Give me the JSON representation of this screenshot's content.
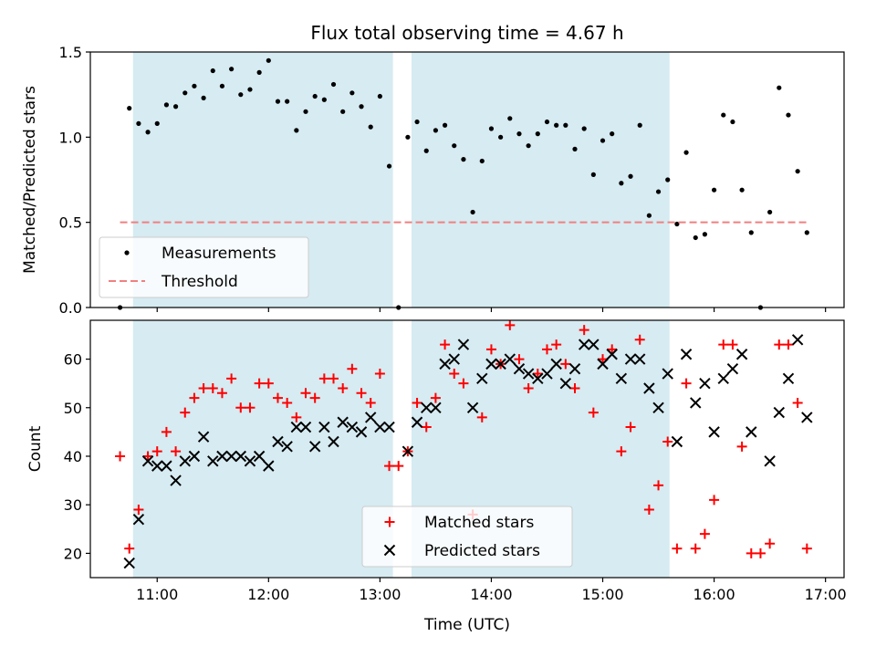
{
  "chart_data": [
    {
      "type": "scatter",
      "title": "Flux total observing time = 4.67 h",
      "xlabel": "",
      "ylabel": "Matched/Predicted stars",
      "ylim": [
        0,
        1.5
      ],
      "yticks": [
        "0.0",
        "0.5",
        "1.0",
        "1.5"
      ],
      "xlim": [
        "10:24",
        "17:10"
      ],
      "shaded_intervals": [
        [
          "10:47",
          "13:07"
        ],
        [
          "13:17",
          "15:36"
        ]
      ],
      "legend_position": "lower-left",
      "series": [
        {
          "name": "Measurements",
          "marker": "dot",
          "color": "#000000",
          "points": [
            [
              "10:40",
              0.0
            ],
            [
              "10:45",
              1.17
            ],
            [
              "10:50",
              1.08
            ],
            [
              "10:55",
              1.03
            ],
            [
              "11:00",
              1.08
            ],
            [
              "11:05",
              1.19
            ],
            [
              "11:10",
              1.18
            ],
            [
              "11:15",
              1.26
            ],
            [
              "11:20",
              1.3
            ],
            [
              "11:25",
              1.23
            ],
            [
              "11:30",
              1.39
            ],
            [
              "11:35",
              1.3
            ],
            [
              "11:40",
              1.4
            ],
            [
              "11:45",
              1.25
            ],
            [
              "11:50",
              1.28
            ],
            [
              "11:55",
              1.38
            ],
            [
              "12:00",
              1.45
            ],
            [
              "12:05",
              1.21
            ],
            [
              "12:10",
              1.21
            ],
            [
              "12:15",
              1.04
            ],
            [
              "12:20",
              1.15
            ],
            [
              "12:25",
              1.24
            ],
            [
              "12:30",
              1.22
            ],
            [
              "12:35",
              1.31
            ],
            [
              "12:40",
              1.15
            ],
            [
              "12:45",
              1.26
            ],
            [
              "12:50",
              1.18
            ],
            [
              "12:55",
              1.06
            ],
            [
              "13:00",
              1.24
            ],
            [
              "13:05",
              0.83
            ],
            [
              "13:10",
              0.0
            ],
            [
              "13:15",
              1.0
            ],
            [
              "13:20",
              1.09
            ],
            [
              "13:25",
              0.92
            ],
            [
              "13:30",
              1.04
            ],
            [
              "13:35",
              1.07
            ],
            [
              "13:40",
              0.95
            ],
            [
              "13:45",
              0.87
            ],
            [
              "13:50",
              0.56
            ],
            [
              "13:55",
              0.86
            ],
            [
              "14:00",
              1.05
            ],
            [
              "14:05",
              1.0
            ],
            [
              "14:10",
              1.11
            ],
            [
              "14:15",
              1.02
            ],
            [
              "14:20",
              0.95
            ],
            [
              "14:25",
              1.02
            ],
            [
              "14:30",
              1.09
            ],
            [
              "14:35",
              1.07
            ],
            [
              "14:40",
              1.07
            ],
            [
              "14:45",
              0.93
            ],
            [
              "14:50",
              1.05
            ],
            [
              "14:55",
              0.78
            ],
            [
              "15:00",
              0.98
            ],
            [
              "15:05",
              1.02
            ],
            [
              "15:10",
              0.73
            ],
            [
              "15:15",
              0.77
            ],
            [
              "15:20",
              1.07
            ],
            [
              "15:25",
              0.54
            ],
            [
              "15:30",
              0.68
            ],
            [
              "15:35",
              0.75
            ],
            [
              "15:40",
              0.49
            ],
            [
              "15:45",
              0.91
            ],
            [
              "15:50",
              0.41
            ],
            [
              "15:55",
              0.43
            ],
            [
              "16:00",
              0.69
            ],
            [
              "16:05",
              1.13
            ],
            [
              "16:10",
              1.09
            ],
            [
              "16:15",
              0.69
            ],
            [
              "16:20",
              0.44
            ],
            [
              "16:25",
              0.0
            ],
            [
              "16:30",
              0.56
            ],
            [
              "16:35",
              1.29
            ],
            [
              "16:40",
              1.13
            ],
            [
              "16:45",
              0.8
            ],
            [
              "16:50",
              0.44
            ]
          ]
        },
        {
          "name": "Threshold",
          "marker": "dashed-line",
          "color": "#f08080",
          "points": [
            [
              "10:40",
              0.5
            ],
            [
              "16:50",
              0.5
            ]
          ]
        }
      ]
    },
    {
      "type": "scatter",
      "title": "",
      "xlabel": "Time (UTC)",
      "ylabel": "Count",
      "ylim": [
        15,
        68
      ],
      "yticks": [
        "20",
        "30",
        "40",
        "50",
        "60"
      ],
      "xticks": [
        "11:00",
        "12:00",
        "13:00",
        "14:00",
        "15:00",
        "16:00",
        "17:00"
      ],
      "xlim": [
        "10:24",
        "17:10"
      ],
      "shaded_intervals": [
        [
          "10:47",
          "13:07"
        ],
        [
          "13:17",
          "15:36"
        ]
      ],
      "legend_position": "lower-center",
      "series": [
        {
          "name": "Matched stars",
          "marker": "plus",
          "color": "#ff0000",
          "points": [
            [
              "10:40",
              40
            ],
            [
              "10:45",
              21
            ],
            [
              "10:50",
              29
            ],
            [
              "10:55",
              40
            ],
            [
              "11:00",
              41
            ],
            [
              "11:05",
              45
            ],
            [
              "11:10",
              41
            ],
            [
              "11:15",
              49
            ],
            [
              "11:20",
              52
            ],
            [
              "11:25",
              54
            ],
            [
              "11:30",
              54
            ],
            [
              "11:35",
              53
            ],
            [
              "11:40",
              56
            ],
            [
              "11:45",
              50
            ],
            [
              "11:50",
              50
            ],
            [
              "11:55",
              55
            ],
            [
              "12:00",
              55
            ],
            [
              "12:05",
              52
            ],
            [
              "12:10",
              51
            ],
            [
              "12:15",
              48
            ],
            [
              "12:20",
              53
            ],
            [
              "12:25",
              52
            ],
            [
              "12:30",
              56
            ],
            [
              "12:35",
              56
            ],
            [
              "12:40",
              54
            ],
            [
              "12:45",
              58
            ],
            [
              "12:50",
              53
            ],
            [
              "12:55",
              51
            ],
            [
              "13:00",
              57
            ],
            [
              "13:05",
              38
            ],
            [
              "13:10",
              38
            ],
            [
              "13:15",
              41
            ],
            [
              "13:20",
              51
            ],
            [
              "13:25",
              46
            ],
            [
              "13:30",
              52
            ],
            [
              "13:35",
              63
            ],
            [
              "13:40",
              57
            ],
            [
              "13:45",
              55
            ],
            [
              "13:50",
              28
            ],
            [
              "13:55",
              48
            ],
            [
              "14:00",
              62
            ],
            [
              "14:05",
              59
            ],
            [
              "14:10",
              67
            ],
            [
              "14:15",
              60
            ],
            [
              "14:20",
              54
            ],
            [
              "14:25",
              57
            ],
            [
              "14:30",
              62
            ],
            [
              "14:35",
              63
            ],
            [
              "14:40",
              59
            ],
            [
              "14:45",
              54
            ],
            [
              "14:50",
              66
            ],
            [
              "14:55",
              49
            ],
            [
              "15:00",
              60
            ],
            [
              "15:05",
              62
            ],
            [
              "15:10",
              41
            ],
            [
              "15:15",
              46
            ],
            [
              "15:20",
              64
            ],
            [
              "15:25",
              29
            ],
            [
              "15:30",
              34
            ],
            [
              "15:35",
              43
            ],
            [
              "15:40",
              21
            ],
            [
              "15:45",
              55
            ],
            [
              "15:50",
              21
            ],
            [
              "15:55",
              24
            ],
            [
              "16:00",
              31
            ],
            [
              "16:05",
              63
            ],
            [
              "16:10",
              63
            ],
            [
              "16:15",
              42
            ],
            [
              "16:20",
              20
            ],
            [
              "16:25",
              20
            ],
            [
              "16:30",
              22
            ],
            [
              "16:35",
              63
            ],
            [
              "16:40",
              63
            ],
            [
              "16:45",
              51
            ],
            [
              "16:50",
              21
            ]
          ]
        },
        {
          "name": "Predicted stars",
          "marker": "x",
          "color": "#000000",
          "points": [
            [
              "10:45",
              18
            ],
            [
              "10:50",
              27
            ],
            [
              "10:55",
              39
            ],
            [
              "11:00",
              38
            ],
            [
              "11:05",
              38
            ],
            [
              "11:10",
              35
            ],
            [
              "11:15",
              39
            ],
            [
              "11:20",
              40
            ],
            [
              "11:25",
              44
            ],
            [
              "11:30",
              39
            ],
            [
              "11:35",
              40
            ],
            [
              "11:40",
              40
            ],
            [
              "11:45",
              40
            ],
            [
              "11:50",
              39
            ],
            [
              "11:55",
              40
            ],
            [
              "12:00",
              38
            ],
            [
              "12:05",
              43
            ],
            [
              "12:10",
              42
            ],
            [
              "12:15",
              46
            ],
            [
              "12:20",
              46
            ],
            [
              "12:25",
              42
            ],
            [
              "12:30",
              46
            ],
            [
              "12:35",
              43
            ],
            [
              "12:40",
              47
            ],
            [
              "12:45",
              46
            ],
            [
              "12:50",
              45
            ],
            [
              "12:55",
              48
            ],
            [
              "13:00",
              46
            ],
            [
              "13:05",
              46
            ],
            [
              "13:15",
              41
            ],
            [
              "13:20",
              47
            ],
            [
              "13:25",
              50
            ],
            [
              "13:30",
              50
            ],
            [
              "13:35",
              59
            ],
            [
              "13:40",
              60
            ],
            [
              "13:45",
              63
            ],
            [
              "13:50",
              50
            ],
            [
              "13:55",
              56
            ],
            [
              "14:00",
              59
            ],
            [
              "14:05",
              59
            ],
            [
              "14:10",
              60
            ],
            [
              "14:15",
              58
            ],
            [
              "14:20",
              57
            ],
            [
              "14:25",
              56
            ],
            [
              "14:30",
              57
            ],
            [
              "14:35",
              59
            ],
            [
              "14:40",
              55
            ],
            [
              "14:45",
              58
            ],
            [
              "14:50",
              63
            ],
            [
              "14:55",
              63
            ],
            [
              "15:00",
              59
            ],
            [
              "15:05",
              61
            ],
            [
              "15:10",
              56
            ],
            [
              "15:15",
              60
            ],
            [
              "15:20",
              60
            ],
            [
              "15:25",
              54
            ],
            [
              "15:30",
              50
            ],
            [
              "15:35",
              57
            ],
            [
              "15:40",
              43
            ],
            [
              "15:45",
              61
            ],
            [
              "15:50",
              51
            ],
            [
              "15:55",
              55
            ],
            [
              "16:00",
              45
            ],
            [
              "16:05",
              56
            ],
            [
              "16:10",
              58
            ],
            [
              "16:15",
              61
            ],
            [
              "16:20",
              45
            ],
            [
              "16:30",
              39
            ],
            [
              "16:35",
              49
            ],
            [
              "16:40",
              56
            ],
            [
              "16:45",
              64
            ],
            [
              "16:50",
              48
            ]
          ]
        }
      ]
    }
  ]
}
